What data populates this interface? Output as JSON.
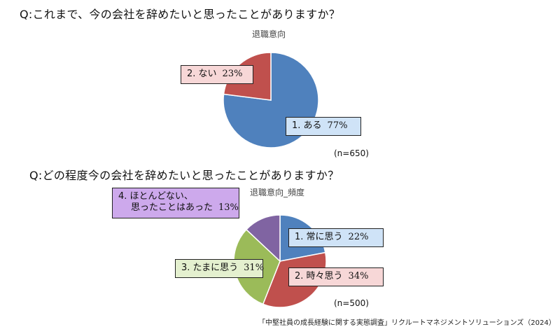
{
  "q1": "Q:これまで、今の会社を辞めたいと思ったことがありますか？",
  "q2": "Q:どの程度今の会社を辞めたいと思ったことがありますか？",
  "source": "「中堅社員の成長経験に関する実態調査」リクルートマネジメントソリューションズ（2024）",
  "chart_data": [
    {
      "type": "pie",
      "title": "退職意向",
      "n_label": "(n=650)",
      "slices": [
        {
          "label": "1. ある",
          "value": 77,
          "value_label": "77%",
          "color": "#4f81bd"
        },
        {
          "label": "2. ない",
          "value": 23,
          "value_label": "23%",
          "color": "#c0504d"
        }
      ]
    },
    {
      "type": "pie",
      "title": "退職意向_頻度",
      "n_label": "(n=500)",
      "slices": [
        {
          "label": "1. 常に思う",
          "value": 22,
          "value_label": "22%",
          "color": "#4f81bd"
        },
        {
          "label": "2. 時々思う",
          "value": 34,
          "value_label": "34%",
          "color": "#c0504d"
        },
        {
          "label": "3. たまに思う",
          "value": 31,
          "value_label": "31%",
          "color": "#9bbb59"
        },
        {
          "label_line1": "4. ほとんどない、",
          "label_line2": "思ったことはあった",
          "value": 13,
          "value_label": "13%",
          "color": "#8064a2"
        }
      ]
    }
  ]
}
